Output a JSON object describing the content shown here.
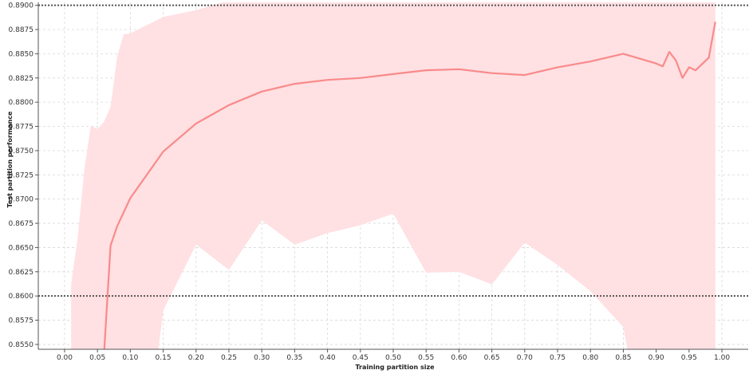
{
  "chart_data": {
    "type": "line",
    "xlabel": "Training partition size",
    "ylabel": "Test partition performance",
    "xlim": [
      -0.04,
      1.04
    ],
    "ylim": [
      0.8545,
      0.8903
    ],
    "x_ticks": [
      "0.00",
      "0.05",
      "0.10",
      "0.15",
      "0.20",
      "0.25",
      "0.30",
      "0.35",
      "0.40",
      "0.45",
      "0.50",
      "0.55",
      "0.60",
      "0.65",
      "0.70",
      "0.75",
      "0.80",
      "0.85",
      "0.90",
      "0.95",
      "1.00"
    ],
    "y_ticks": [
      "0.8550",
      "0.8575",
      "0.8600",
      "0.8625",
      "0.8650",
      "0.8675",
      "0.8700",
      "0.8725",
      "0.8750",
      "0.8775",
      "0.8800",
      "0.8825",
      "0.8850",
      "0.8875",
      "0.8900"
    ],
    "grid": true,
    "reference_lines": [
      0.89,
      0.86
    ],
    "series": [
      {
        "color": "#f98a8a",
        "band_color": "#ffe0e3",
        "x": [
          0.06,
          0.07,
          0.08,
          0.1,
          0.15,
          0.2,
          0.25,
          0.3,
          0.35,
          0.4,
          0.45,
          0.5,
          0.55,
          0.6,
          0.65,
          0.7,
          0.75,
          0.8,
          0.85,
          0.9,
          0.91,
          0.92,
          0.93,
          0.94,
          0.95,
          0.96,
          0.98,
          0.99
        ],
        "y": [
          0.854,
          0.8652,
          0.8672,
          0.8701,
          0.8749,
          0.8778,
          0.8797,
          0.8811,
          0.8819,
          0.8823,
          0.8825,
          0.8829,
          0.8833,
          0.8834,
          0.883,
          0.8828,
          0.8836,
          0.8842,
          0.885,
          0.884,
          0.8837,
          0.8852,
          0.8843,
          0.8825,
          0.8836,
          0.8833,
          0.8846,
          0.8883
        ],
        "upper": {
          "x": [
            0.01,
            0.02,
            0.03,
            0.04,
            0.05,
            0.06,
            0.07,
            0.08,
            0.09,
            0.1,
            0.15,
            0.2,
            0.25,
            0.28,
            0.3,
            0.99
          ],
          "y": [
            0.8612,
            0.866,
            0.873,
            0.8776,
            0.8772,
            0.878,
            0.8795,
            0.8847,
            0.887,
            0.8871,
            0.8888,
            0.8895,
            0.8905,
            0.8915,
            0.892,
            0.892
          ]
        },
        "lower": {
          "x": [
            0.01,
            0.05,
            0.1,
            0.14,
            0.15,
            0.2,
            0.25,
            0.3,
            0.35,
            0.4,
            0.45,
            0.5,
            0.55,
            0.6,
            0.65,
            0.7,
            0.75,
            0.8,
            0.85,
            0.86,
            0.99
          ],
          "y": [
            0.853,
            0.853,
            0.853,
            0.853,
            0.8585,
            0.8653,
            0.8627,
            0.8678,
            0.8653,
            0.8665,
            0.8673,
            0.8685,
            0.8624,
            0.8625,
            0.8612,
            0.8655,
            0.8632,
            0.8605,
            0.8568,
            0.853,
            0.853
          ]
        }
      }
    ]
  }
}
